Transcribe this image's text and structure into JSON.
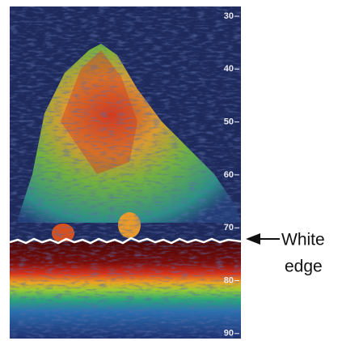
{
  "depth_scale": [
    "30",
    "40",
    "50",
    "60",
    "70",
    "80",
    "90"
  ],
  "annotation": {
    "lines": [
      "White",
      "edge"
    ]
  }
}
